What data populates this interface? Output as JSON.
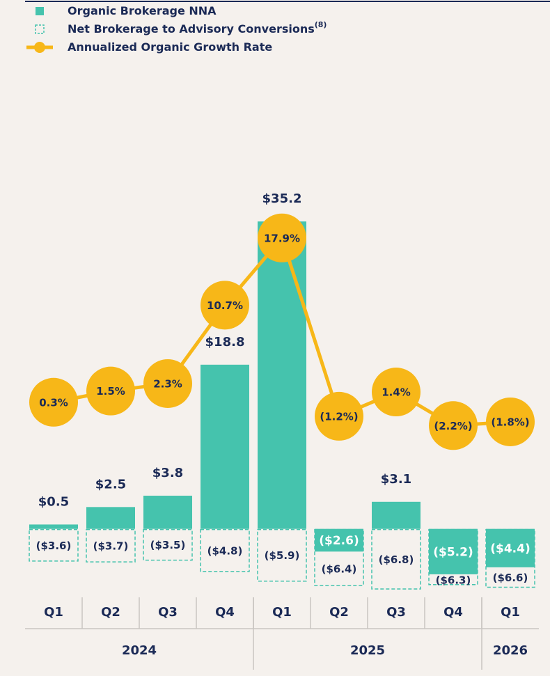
{
  "chart_data": {
    "type": "bar",
    "categories": [
      "Q1",
      "Q2",
      "Q3",
      "Q4",
      "Q1",
      "Q2",
      "Q3",
      "Q4",
      "Q1"
    ],
    "groups": [
      {
        "label": "2024",
        "span": 4
      },
      {
        "label": "2025",
        "span": 4
      },
      {
        "label": "2026",
        "span": 1
      }
    ],
    "legend_note": "(8)",
    "series": [
      {
        "name": "Organic Brokerage NNA",
        "type": "bar",
        "color": "#45c3ad",
        "values": [
          0.5,
          2.5,
          3.8,
          18.8,
          35.2,
          -2.6,
          3.1,
          -5.2,
          -4.4
        ],
        "value_labels": [
          "$0.5",
          "$2.5",
          "$3.8",
          "$18.8",
          "$35.2",
          "($2.6)",
          "$3.1",
          "($5.2)",
          "($4.4)"
        ]
      },
      {
        "name": "Net Brokerage to Advisory Conversions",
        "type": "bar",
        "style": "dashed",
        "color": "#45c3ad",
        "values": [
          -3.6,
          -3.7,
          -3.5,
          -4.8,
          -5.9,
          -6.4,
          -6.8,
          -6.3,
          -6.6
        ],
        "value_labels": [
          "($3.6)",
          "($3.7)",
          "($3.5)",
          "($4.8)",
          "($5.9)",
          "($6.4)",
          "($6.8)",
          "($6.3)",
          "($6.6)"
        ]
      },
      {
        "name": "Annualized Organic Growth Rate",
        "type": "line",
        "axis": "y2",
        "color": "#f7b718",
        "values": [
          0.3,
          1.5,
          2.3,
          10.7,
          17.9,
          -1.2,
          1.4,
          -2.2,
          -1.8
        ],
        "value_labels": [
          "0.3%",
          "1.5%",
          "2.3%",
          "10.7%",
          "17.9%",
          "(1.2%)",
          "1.4%",
          "(2.2%)",
          "(1.8%)"
        ]
      }
    ],
    "ylim": [
      -7.2,
      48.6
    ],
    "y2lim": [
      -20,
      32.2
    ],
    "grid": false
  }
}
